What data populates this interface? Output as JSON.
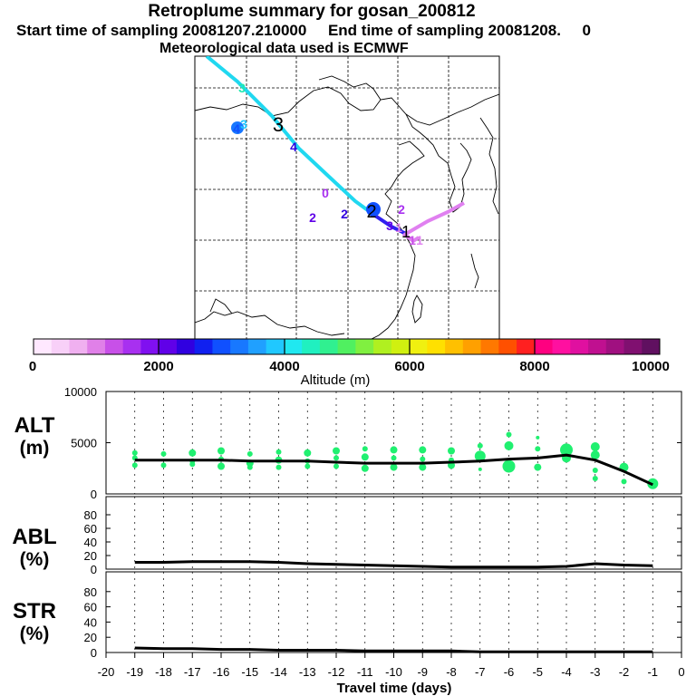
{
  "header": {
    "title": "Retroplume summary for gosan_200812",
    "subtitle": "Start time of sampling 20081207.210000     End time of sampling 20081208.     0",
    "subtitle2": "Meteorological data used is ECMWF"
  },
  "map": {
    "markers": [
      "3",
      "4",
      "3",
      "3",
      "4",
      "0",
      "2",
      "2",
      "2",
      "2",
      "3",
      "1",
      "1",
      "1",
      "1"
    ]
  },
  "colorbar": {
    "tick_labels": [
      "0",
      "2000",
      "4000",
      "6000",
      "8000",
      "10000"
    ],
    "label": "Altitude (m)",
    "colors": [
      "#ffe8ff",
      "#f8d0f8",
      "#f0b0f0",
      "#e080e8",
      "#c850e8",
      "#a830f0",
      "#8010f0",
      "#6000e8",
      "#3000e0",
      "#1020f0",
      "#1050ff",
      "#1878ff",
      "#20a0ff",
      "#20c8ff",
      "#20e8f0",
      "#20f0c0",
      "#30f090",
      "#50f060",
      "#80f040",
      "#b0f020",
      "#d0f010",
      "#f0f010",
      "#ffe000",
      "#ffc000",
      "#ffa000",
      "#ff7800",
      "#ff5000",
      "#ff2020",
      "#ff0080",
      "#ff10a0",
      "#e010a0",
      "#c01090",
      "#a01080",
      "#801070",
      "#601060"
    ]
  },
  "chart_data": [
    {
      "type": "line",
      "panel": "ALT",
      "ylabel": "ALT\n(m)",
      "ylabel_line1": "ALT",
      "ylabel_line2": "(m)",
      "ylim": [
        0,
        10000
      ],
      "yticks": [
        "0",
        "5000",
        "10000"
      ],
      "x": [
        -19,
        -18,
        -17,
        -16,
        -15,
        -14,
        -13,
        -12,
        -11,
        -10,
        -9,
        -8,
        -7,
        -6,
        -5,
        -4,
        -3,
        -2,
        -1
      ],
      "values": [
        3300,
        3300,
        3300,
        3300,
        3200,
        3200,
        3200,
        3100,
        3000,
        3000,
        3000,
        3100,
        3200,
        3400,
        3500,
        3800,
        3300,
        2200,
        900
      ],
      "scatter_points": [
        [
          -19,
          4000
        ],
        [
          -19,
          3500
        ],
        [
          -19,
          2800
        ],
        [
          -18,
          3900
        ],
        [
          -18,
          2800
        ],
        [
          -17,
          4000
        ],
        [
          -17,
          3200
        ],
        [
          -17,
          2900
        ],
        [
          -16,
          4200
        ],
        [
          -16,
          3400
        ],
        [
          -16,
          2700
        ],
        [
          -15,
          3900
        ],
        [
          -15,
          3000
        ],
        [
          -15,
          2600
        ],
        [
          -14,
          4100
        ],
        [
          -14,
          3300
        ],
        [
          -14,
          2600
        ],
        [
          -13,
          4000
        ],
        [
          -13,
          3200
        ],
        [
          -13,
          2700
        ],
        [
          -12,
          4200
        ],
        [
          -12,
          3500
        ],
        [
          -12,
          2700
        ],
        [
          -11,
          4400
        ],
        [
          -11,
          3600
        ],
        [
          -11,
          2500
        ],
        [
          -10,
          4300
        ],
        [
          -10,
          3500
        ],
        [
          -10,
          2600
        ],
        [
          -9,
          4300
        ],
        [
          -9,
          3400
        ],
        [
          -9,
          2600
        ],
        [
          -8,
          4200
        ],
        [
          -8,
          3300
        ],
        [
          -8,
          2800
        ],
        [
          -7,
          4700
        ],
        [
          -7,
          3700
        ],
        [
          -7,
          2400
        ],
        [
          -6,
          5800
        ],
        [
          -6,
          4700
        ],
        [
          -6,
          2700
        ],
        [
          -5,
          5500
        ],
        [
          -5,
          4400
        ],
        [
          -5,
          2600
        ],
        [
          -4,
          4300
        ],
        [
          -4,
          3500
        ],
        [
          -3,
          4600
        ],
        [
          -3,
          3800
        ],
        [
          -3,
          2300
        ],
        [
          -3,
          1500
        ],
        [
          -2,
          2600
        ],
        [
          -2,
          1200
        ],
        [
          -1,
          1000
        ]
      ],
      "point_sizes": [
        3,
        3,
        3,
        3,
        3,
        4,
        3,
        3,
        4,
        3,
        4,
        3,
        4,
        3,
        3,
        4,
        3,
        4,
        3,
        3,
        4,
        3,
        3,
        3,
        4,
        4,
        4,
        3,
        4,
        4,
        3,
        4,
        4,
        3,
        4,
        3,
        6,
        2,
        3,
        5,
        7,
        2,
        3,
        4,
        7,
        5,
        5,
        5,
        3,
        3,
        5,
        3,
        6
      ]
    },
    {
      "type": "line",
      "panel": "ABL",
      "ylabel_line1": "ABL",
      "ylabel_line2": "(%)",
      "ylim": [
        0,
        100
      ],
      "yticks": [
        "0",
        "20",
        "40",
        "60",
        "80"
      ],
      "x": [
        -19,
        -18,
        -17,
        -16,
        -15,
        -14,
        -13,
        -12,
        -11,
        -10,
        -9,
        -8,
        -7,
        -6,
        -5,
        -4,
        -3,
        -2,
        -1
      ],
      "values": [
        10,
        10,
        11,
        11,
        11,
        10,
        8,
        7,
        6,
        5,
        4,
        3,
        3,
        3,
        3,
        4,
        8,
        6,
        5
      ]
    },
    {
      "type": "line",
      "panel": "STR",
      "ylabel_line1": "STR",
      "ylabel_line2": "(%)",
      "ylim": [
        0,
        100
      ],
      "yticks": [
        "0",
        "20",
        "40",
        "60",
        "80"
      ],
      "x": [
        -19,
        -18,
        -17,
        -16,
        -15,
        -14,
        -13,
        -12,
        -11,
        -10,
        -9,
        -8,
        -7,
        -6,
        -5,
        -4,
        -3,
        -2,
        -1
      ],
      "values": [
        6,
        5,
        5,
        4,
        4,
        3,
        3,
        3,
        2,
        2,
        2,
        2,
        1,
        1,
        1,
        1,
        1,
        1,
        1
      ]
    }
  ],
  "xaxis": {
    "label": "Travel time (days)",
    "tick_labels": [
      "-20",
      "-19",
      "-18",
      "-17",
      "-16",
      "-15",
      "-14",
      "-13",
      "-12",
      "-11",
      "-10",
      "-9",
      "-8",
      "-7",
      "-6",
      "-5",
      "-4",
      "-3",
      "-2",
      "-1",
      "0"
    ]
  },
  "colors": {
    "point": "#20f070",
    "line": "#000000",
    "trajectory_main": "#20d8f0",
    "trajectory_end": "#e080f0",
    "trajectory_mid": "#3020f0"
  }
}
